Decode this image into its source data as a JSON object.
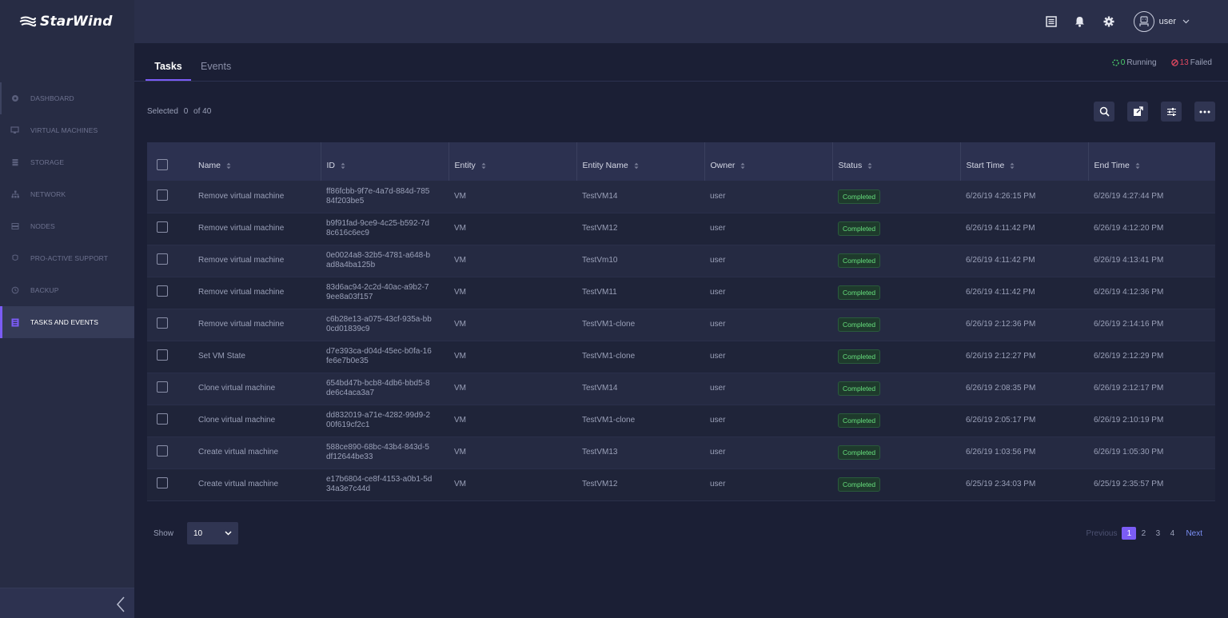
{
  "app": {
    "brand": "StarWind"
  },
  "sidebar": {
    "items": [
      {
        "label": "DASHBOARD",
        "icon": "dashboard-icon"
      },
      {
        "label": "VIRTUAL MACHINES",
        "icon": "monitor-icon"
      },
      {
        "label": "STORAGE",
        "icon": "storage-icon"
      },
      {
        "label": "NETWORK",
        "icon": "network-icon"
      },
      {
        "label": "NODES",
        "icon": "nodes-icon"
      },
      {
        "label": "PRO-ACTIVE SUPPORT",
        "icon": "support-icon"
      },
      {
        "label": "BACKUP",
        "icon": "backup-icon"
      },
      {
        "label": "TASKS AND EVENTS",
        "icon": "tasks-icon"
      }
    ],
    "active": "TASKS AND EVENTS"
  },
  "header": {
    "user": "user"
  },
  "tabs": [
    {
      "label": "Tasks"
    },
    {
      "label": "Events"
    }
  ],
  "status": {
    "running_count": "0",
    "running_label": "Running",
    "failed_count": "13",
    "failed_label": "Failed"
  },
  "selection": {
    "label": "Selected",
    "count": "0",
    "of": "of 40"
  },
  "table": {
    "columns": [
      "Name",
      "ID",
      "Entity",
      "Entity Name",
      "Owner",
      "Status",
      "Start Time",
      "End Time"
    ],
    "rows": [
      {
        "name": "Remove virtual machine",
        "id": "ff86fcbb-9f7e-4a7d-884d-78584f203be5",
        "entity": "VM",
        "entity_name": "TestVM14",
        "owner": "user",
        "status": "Completed",
        "start": "6/26/19 4:26:15 PM",
        "end": "6/26/19 4:27:44 PM"
      },
      {
        "name": "Remove virtual machine",
        "id": "b9f91fad-9ce9-4c25-b592-7d8c616c6ec9",
        "entity": "VM",
        "entity_name": "TestVM12",
        "owner": "user",
        "status": "Completed",
        "start": "6/26/19 4:11:42 PM",
        "end": "6/26/19 4:12:20 PM"
      },
      {
        "name": "Remove virtual machine",
        "id": "0e0024a8-32b5-4781-a648-bad8a4ba125b",
        "entity": "VM",
        "entity_name": "TestVm10",
        "owner": "user",
        "status": "Completed",
        "start": "6/26/19 4:11:42 PM",
        "end": "6/26/19 4:13:41 PM"
      },
      {
        "name": "Remove virtual machine",
        "id": "83d6ac94-2c2d-40ac-a9b2-79ee8a03f157",
        "entity": "VM",
        "entity_name": "TestVM11",
        "owner": "user",
        "status": "Completed",
        "start": "6/26/19 4:11:42 PM",
        "end": "6/26/19 4:12:36 PM"
      },
      {
        "name": "Remove virtual machine",
        "id": "c6b28e13-a075-43cf-935a-bb0cd01839c9",
        "entity": "VM",
        "entity_name": "TestVM1-clone",
        "owner": "user",
        "status": "Completed",
        "start": "6/26/19 2:12:36 PM",
        "end": "6/26/19 2:14:16 PM"
      },
      {
        "name": "Set VM State",
        "id": "d7e393ca-d04d-45ec-b0fa-16fe6e7b0e35",
        "entity": "VM",
        "entity_name": "TestVM1-clone",
        "owner": "user",
        "status": "Completed",
        "start": "6/26/19 2:12:27 PM",
        "end": "6/26/19 2:12:29 PM"
      },
      {
        "name": "Clone virtual machine",
        "id": "654bd47b-bcb8-4db6-bbd5-8de6c4aca3a7",
        "entity": "VM",
        "entity_name": "TestVM14",
        "owner": "user",
        "status": "Completed",
        "start": "6/26/19 2:08:35 PM",
        "end": "6/26/19 2:12:17 PM"
      },
      {
        "name": "Clone virtual machine",
        "id": "dd832019-a71e-4282-99d9-200f619cf2c1",
        "entity": "VM",
        "entity_name": "TestVM1-clone",
        "owner": "user",
        "status": "Completed",
        "start": "6/26/19 2:05:17 PM",
        "end": "6/26/19 2:10:19 PM"
      },
      {
        "name": "Create virtual machine",
        "id": "588ce890-68bc-43b4-843d-5df12644be33",
        "entity": "VM",
        "entity_name": "TestVM13",
        "owner": "user",
        "status": "Completed",
        "start": "6/26/19 1:03:56 PM",
        "end": "6/26/19 1:05:30 PM"
      },
      {
        "name": "Create virtual machine",
        "id": "e17b6804-ce8f-4153-a0b1-5d34a3e7c44d",
        "entity": "VM",
        "entity_name": "TestVM12",
        "owner": "user",
        "status": "Completed",
        "start": "6/25/19 2:34:03 PM",
        "end": "6/25/19 2:35:57 PM"
      }
    ]
  },
  "footer": {
    "show_label": "Show",
    "page_size": "10",
    "previous": "Previous",
    "next": "Next",
    "pages": [
      "1",
      "2",
      "3",
      "4"
    ],
    "current_page": "1"
  },
  "colors": {
    "accent": "#7b5cf5",
    "success": "#66e07d",
    "danger": "#e04860",
    "running": "#4cd26c"
  }
}
